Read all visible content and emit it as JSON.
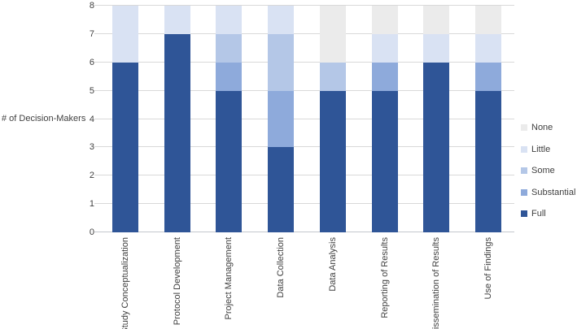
{
  "chart_data": {
    "type": "bar",
    "stacked": true,
    "orientation": "vertical",
    "ylabel": "# of Decision-Makers",
    "xlabel": "",
    "title": "",
    "categories": [
      "Study Conceptualization",
      "Protocol Development",
      "Project Management",
      "Data Collection",
      "Data Analysis",
      "Reporting of Results",
      "Dissemination of Results",
      "Use of Findings"
    ],
    "series": [
      {
        "name": "Full",
        "color": "#2F5597",
        "values": [
          6,
          7,
          5,
          3,
          5,
          5,
          6,
          5
        ]
      },
      {
        "name": "Substantial",
        "color": "#8EAADB",
        "values": [
          0,
          0,
          1,
          2,
          0,
          1,
          0,
          1
        ]
      },
      {
        "name": "Some",
        "color": "#B4C7E7",
        "values": [
          0,
          0,
          1,
          2,
          1,
          0,
          0,
          0
        ]
      },
      {
        "name": "Little",
        "color": "#D9E2F3",
        "values": [
          2,
          1,
          1,
          1,
          0,
          1,
          1,
          1
        ]
      },
      {
        "name": "None",
        "color": "#EBEBEB",
        "values": [
          0,
          0,
          0,
          0,
          2,
          1,
          1,
          1
        ]
      }
    ],
    "ylim": [
      0,
      8
    ],
    "y_ticks": [
      0,
      1,
      2,
      3,
      4,
      5,
      6,
      7,
      8
    ],
    "grid": "horizontal",
    "legend_position": "right",
    "legend_order": [
      "None",
      "Little",
      "Some",
      "Substantial",
      "Full"
    ]
  },
  "styles": {
    "grid_color": "#D9D9D9",
    "axis_color": "#C3C7CD",
    "text_color": "#404040",
    "background": "#FFFFFF"
  }
}
